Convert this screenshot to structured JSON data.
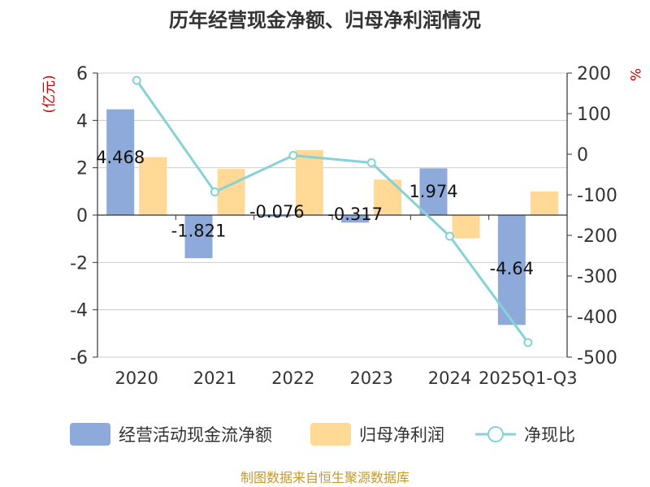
{
  "chart_data": {
    "type": "bar",
    "title": "历年经营现金净额、归母净利润情况",
    "categories": [
      "2020",
      "2021",
      "2022",
      "2023",
      "2024",
      "2025Q1-Q3"
    ],
    "left_unit": "(亿元)",
    "right_unit": "%",
    "left_ylim": [
      -6,
      6
    ],
    "left_ticks": [
      6,
      4,
      2,
      0,
      -2,
      -4,
      -6
    ],
    "right_ylim": [
      -500,
      200
    ],
    "right_ticks": [
      200,
      100,
      0,
      -100,
      -200,
      -300,
      -400,
      -500
    ],
    "grid": true,
    "legend_position": "bottom",
    "series": [
      {
        "name": "经营活动现金流净额",
        "type": "bar",
        "axis": "left",
        "color": "#8eaadb",
        "values": [
          4.468,
          -1.821,
          -0.076,
          -0.317,
          1.974,
          -4.64
        ],
        "labels": [
          "4.468",
          "-1.821",
          "-0.076",
          "-0.317",
          "1.974",
          "-4.64"
        ]
      },
      {
        "name": "归母净利润",
        "type": "bar",
        "axis": "left",
        "color": "#ffd995",
        "values": [
          2.45,
          1.95,
          2.75,
          1.5,
          -0.98,
          1.0
        ]
      },
      {
        "name": "净现比",
        "type": "line",
        "axis": "right",
        "color": "#86d2d6",
        "values": [
          182,
          -93,
          -3,
          -21,
          -202,
          -464
        ]
      }
    ],
    "source": "制图数据来自恒生聚源数据库"
  }
}
